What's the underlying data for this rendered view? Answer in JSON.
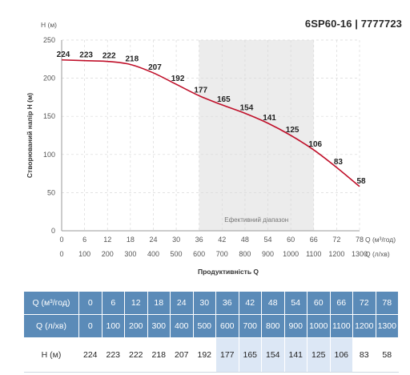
{
  "model_label": "6SP60-16 | 7777723",
  "colors": {
    "curve": "#c0102a",
    "highlight_band": "#ececec",
    "table_header": "#5b8bb8",
    "table_highlight": "#dce7f5"
  },
  "chart_data": {
    "type": "line",
    "y_axis_label_top": "H (м)",
    "ylabel": "Створюваний напір Н (м)",
    "xlabel": "Продуктивність Q",
    "x_unit_primary": "Q (м³/год)",
    "x_unit_secondary": "Q (л/хв)",
    "ylim": [
      0,
      250
    ],
    "y_ticks": [
      0,
      50,
      100,
      150,
      200,
      250
    ],
    "xlim": [
      0,
      78
    ],
    "x_ticks_m3h": [
      0,
      6,
      12,
      18,
      24,
      30,
      36,
      42,
      48,
      54,
      60,
      66,
      72,
      78
    ],
    "x_ticks_lmin": [
      0,
      100,
      200,
      300,
      400,
      500,
      600,
      700,
      800,
      900,
      1000,
      1100,
      1200,
      1300
    ],
    "efficient_range": {
      "label": "Ефективний діапазон",
      "from": 36,
      "to": 66
    },
    "grid": true,
    "series": [
      {
        "x": [
          0,
          6,
          12,
          18,
          24,
          30,
          36,
          42,
          48,
          54,
          60,
          66,
          72,
          78
        ],
        "values": [
          224,
          223,
          222,
          218,
          207,
          192,
          177,
          165,
          154,
          141,
          125,
          106,
          83,
          58
        ]
      }
    ]
  },
  "table": {
    "row_labels": {
      "q_m3h": "Q (м³/год)",
      "q_lmin": "Q (л/хв)",
      "h": "H (м)"
    },
    "highlight_columns": [
      6,
      7,
      8,
      9,
      10,
      11
    ]
  }
}
